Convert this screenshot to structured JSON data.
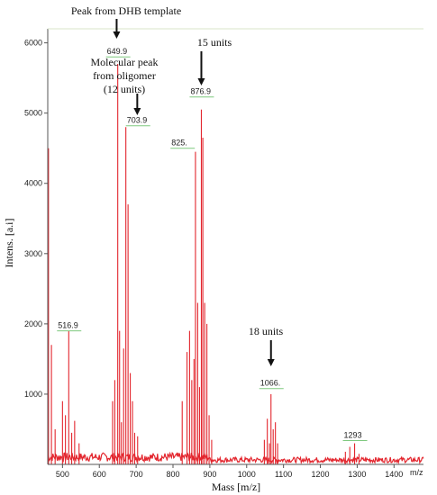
{
  "chart_data": {
    "type": "line",
    "title": "",
    "xlabel": "Mass [m/z]",
    "ylabel": "Intens. [a.i]",
    "x_unit": "m/z",
    "xlim": [
      460,
      1480
    ],
    "ylim": [
      0,
      6200
    ],
    "x_ticks": [
      500,
      600,
      700,
      800,
      900,
      1000,
      1100,
      1200,
      1300,
      1400
    ],
    "y_ticks": [
      1000,
      2000,
      3000,
      4000,
      5000,
      6000
    ],
    "series_color": "#e3262e",
    "baseline": 80,
    "peaks": [
      {
        "x": 462,
        "y": 4500
      },
      {
        "x": 470,
        "y": 1700
      },
      {
        "x": 480,
        "y": 500
      },
      {
        "x": 500,
        "y": 900
      },
      {
        "x": 508,
        "y": 700
      },
      {
        "x": 517,
        "y": 1900
      },
      {
        "x": 525,
        "y": 450
      },
      {
        "x": 533,
        "y": 620
      },
      {
        "x": 545,
        "y": 300
      },
      {
        "x": 636,
        "y": 900
      },
      {
        "x": 642,
        "y": 1200
      },
      {
        "x": 650,
        "y": 5700
      },
      {
        "x": 655,
        "y": 1900
      },
      {
        "x": 660,
        "y": 600
      },
      {
        "x": 666,
        "y": 1650
      },
      {
        "x": 672,
        "y": 4800
      },
      {
        "x": 678,
        "y": 3700
      },
      {
        "x": 684,
        "y": 1300
      },
      {
        "x": 690,
        "y": 900
      },
      {
        "x": 696,
        "y": 450
      },
      {
        "x": 704,
        "y": 400
      },
      {
        "x": 825,
        "y": 900
      },
      {
        "x": 838,
        "y": 1600
      },
      {
        "x": 845,
        "y": 1900
      },
      {
        "x": 851,
        "y": 1200
      },
      {
        "x": 857,
        "y": 1500
      },
      {
        "x": 861,
        "y": 4450
      },
      {
        "x": 867,
        "y": 2300
      },
      {
        "x": 872,
        "y": 1100
      },
      {
        "x": 877,
        "y": 5050
      },
      {
        "x": 881,
        "y": 4650
      },
      {
        "x": 886,
        "y": 2300
      },
      {
        "x": 892,
        "y": 2000
      },
      {
        "x": 898,
        "y": 700
      },
      {
        "x": 905,
        "y": 350
      },
      {
        "x": 1048,
        "y": 350
      },
      {
        "x": 1056,
        "y": 650
      },
      {
        "x": 1062,
        "y": 300
      },
      {
        "x": 1066,
        "y": 1000
      },
      {
        "x": 1072,
        "y": 500
      },
      {
        "x": 1078,
        "y": 600
      },
      {
        "x": 1084,
        "y": 300
      },
      {
        "x": 1268,
        "y": 180
      },
      {
        "x": 1280,
        "y": 250
      },
      {
        "x": 1293,
        "y": 300
      },
      {
        "x": 1305,
        "y": 150
      }
    ],
    "peak_labels": [
      {
        "text": "516.9",
        "x": 516.9,
        "y": 1900
      },
      {
        "text": "649.9",
        "x": 649.9,
        "y": 5800
      },
      {
        "text": "703.9",
        "x": 703.9,
        "y": 4820
      },
      {
        "text": "825.",
        "x": 825,
        "y": 4500
      },
      {
        "text": "876.9",
        "x": 876.9,
        "y": 5230
      },
      {
        "text": "1066.",
        "x": 1066,
        "y": 1080
      },
      {
        "text": "1293",
        "x": 1293,
        "y": 340
      }
    ],
    "annotations": [
      {
        "lines": [
          "Peak from DHB template"
        ],
        "arrow_x": 647
      },
      {
        "lines": [
          "Molecular peak",
          "from oligomer",
          "(12 units)"
        ],
        "arrow_x": 703
      },
      {
        "lines": [
          "15 units"
        ],
        "arrow_x": 877
      },
      {
        "lines": [
          "18 units"
        ],
        "arrow_x": 1066
      }
    ]
  }
}
